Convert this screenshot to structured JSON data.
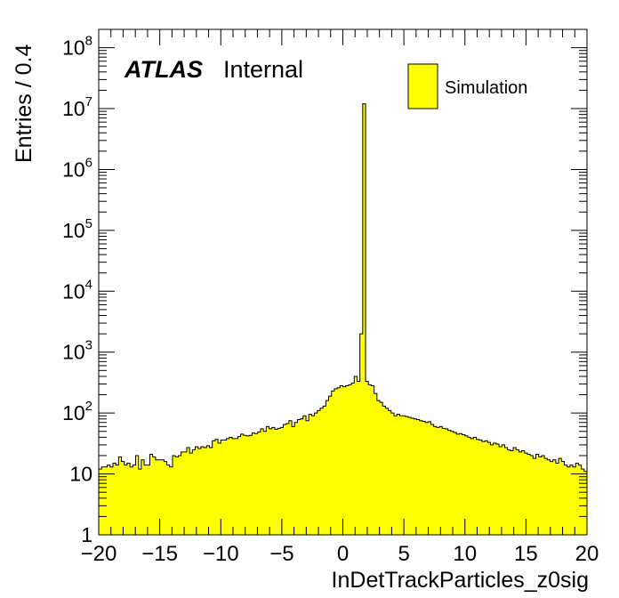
{
  "chart_data": {
    "type": "bar",
    "style": "histogram-step",
    "xlabel": "InDetTrackParticles_z0sig",
    "ylabel": "Entries / 0.4",
    "xlim": [
      -20,
      20
    ],
    "ylim": [
      1,
      200000000
    ],
    "yscale": "log",
    "bin_width": 0.4,
    "fill_color": "#ffff00",
    "line_color": "#000000",
    "x_tick_labels": [
      "−20",
      "−15",
      "−10",
      "−5",
      "0",
      "5",
      "10",
      "15",
      "20"
    ],
    "x_tick_values": [
      -20,
      -15,
      -10,
      -5,
      0,
      5,
      10,
      15,
      20
    ],
    "y_tick_labels": [
      {
        "value": 1,
        "base": "1",
        "exp": ""
      },
      {
        "value": 10,
        "base": "10",
        "exp": ""
      },
      {
        "value": 100,
        "base": "10",
        "exp": "2"
      },
      {
        "value": 1000,
        "base": "10",
        "exp": "3"
      },
      {
        "value": 10000,
        "base": "10",
        "exp": "4"
      },
      {
        "value": 100000,
        "base": "10",
        "exp": "5"
      },
      {
        "value": 1000000,
        "base": "10",
        "exp": "6"
      },
      {
        "value": 10000000,
        "base": "10",
        "exp": "7"
      },
      {
        "value": 100000000,
        "base": "10",
        "exp": "8"
      }
    ],
    "legend": {
      "label": "Simulation",
      "placement": "top-right"
    },
    "atlas_label": "ATLAS",
    "atlas_sublabel": "Internal",
    "bin_values": [
      12,
      13,
      13,
      14,
      13,
      15,
      14,
      19,
      16,
      14,
      15,
      13,
      14,
      20,
      12,
      17,
      14,
      14,
      21,
      19,
      17,
      17,
      17,
      16,
      14,
      13,
      20,
      19,
      20,
      23,
      23,
      27,
      22,
      25,
      28,
      26,
      28,
      27,
      29,
      27,
      35,
      37,
      32,
      36,
      36,
      38,
      40,
      38,
      38,
      41,
      45,
      43,
      42,
      43,
      47,
      46,
      49,
      55,
      50,
      60,
      55,
      58,
      54,
      56,
      58,
      65,
      67,
      75,
      60,
      70,
      78,
      80,
      90,
      75,
      95,
      90,
      100,
      110,
      120,
      130,
      160,
      190,
      230,
      250,
      260,
      280,
      270,
      280,
      290,
      310,
      400,
      330,
      2000,
      12000000,
      330,
      290,
      280,
      210,
      160,
      150,
      130,
      120,
      110,
      100,
      90,
      95,
      90,
      90,
      88,
      85,
      82,
      80,
      78,
      75,
      73,
      70,
      72,
      65,
      60,
      58,
      60,
      56,
      55,
      52,
      50,
      48,
      45,
      46,
      44,
      42,
      40,
      38,
      40,
      37,
      36,
      34,
      35,
      33,
      30,
      32,
      31,
      28,
      30,
      27,
      25,
      24,
      27,
      25,
      23,
      24,
      22,
      21,
      20,
      18,
      21,
      19,
      20,
      18,
      17,
      16,
      17,
      15,
      18,
      16,
      14,
      13,
      14,
      13,
      15,
      14,
      12,
      11
    ]
  }
}
